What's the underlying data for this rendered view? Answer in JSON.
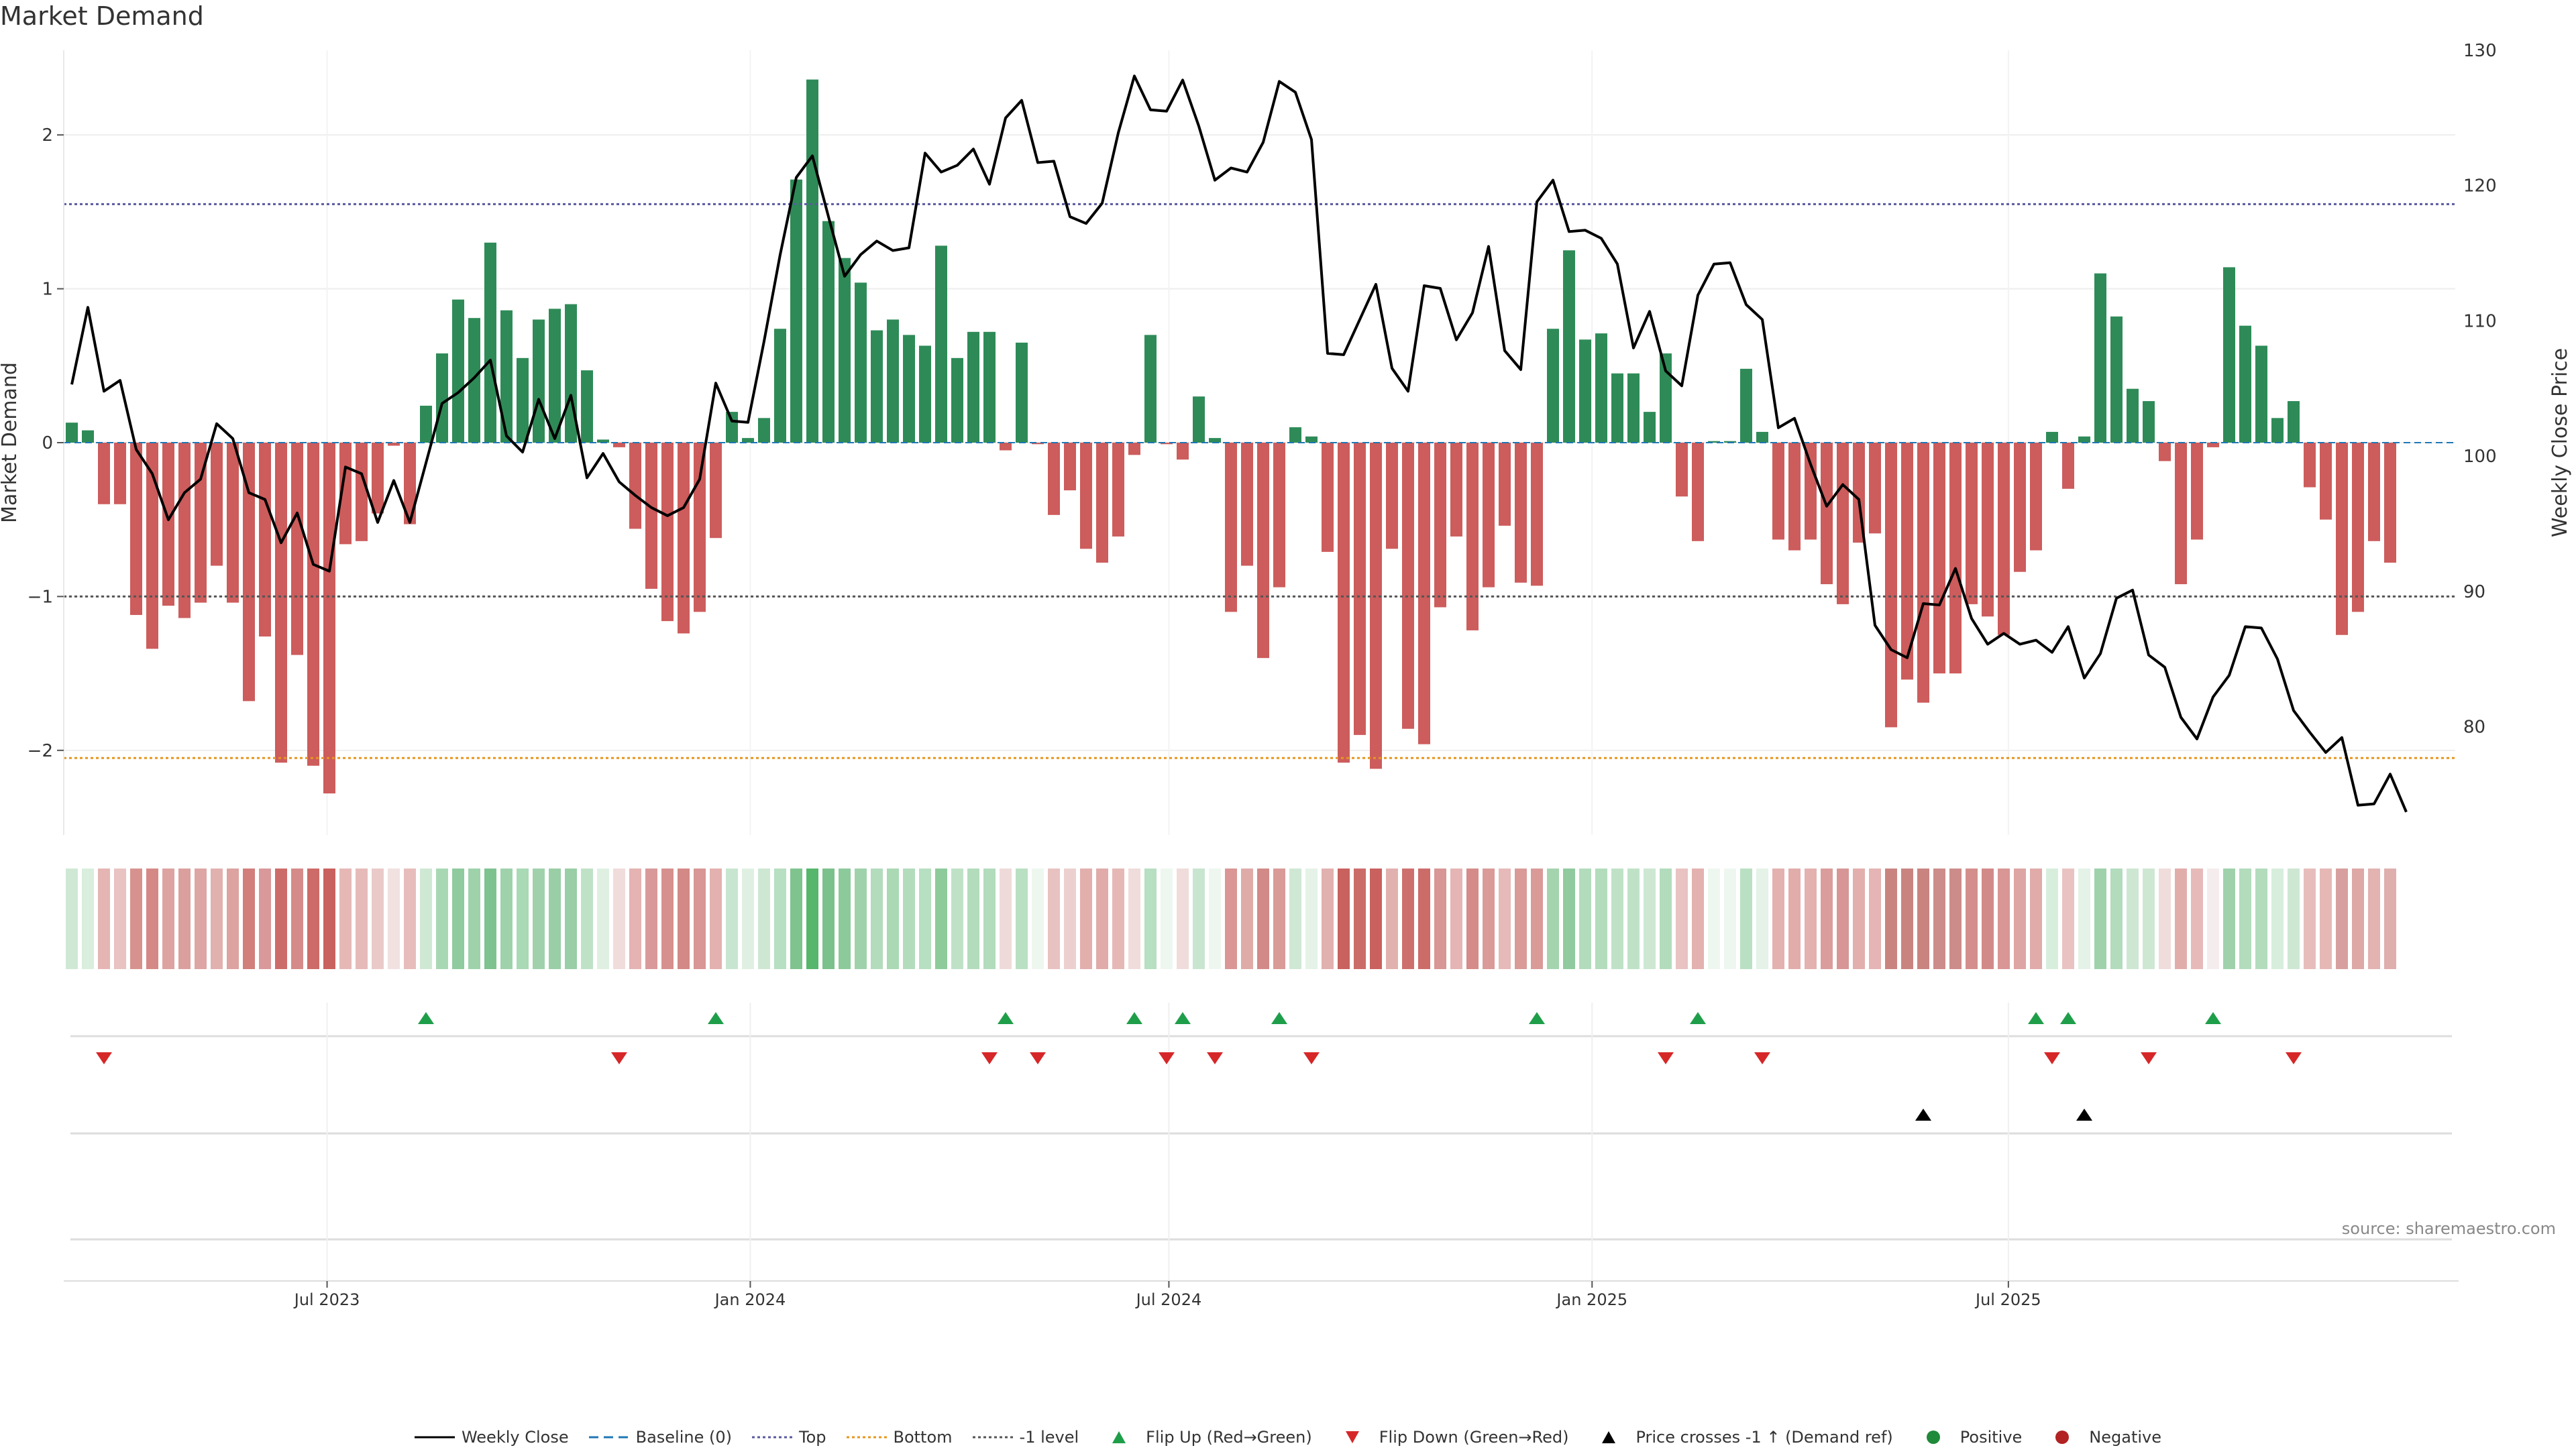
{
  "title": "Market Demand",
  "source_text": "source: sharemaestro.com",
  "colors": {
    "bar_positive": "#2e8b57",
    "bar_negative": "#cd5c5c",
    "price_line": "#000000",
    "top_line": "#5a5aa0",
    "bottom_line": "#e6961e",
    "minus1_line": "#555555",
    "flip_up": "#1f9e4a",
    "flip_down": "#d62728",
    "price_cross": "#000000",
    "positive_dot": "#1f8a3a",
    "negative_dot": "#b22222",
    "grid": "#eeeeee"
  },
  "chart_data": {
    "type": "bar",
    "title": "Market Demand",
    "ylabel": "Market Demand",
    "y2label": "Weekly Close Price",
    "ylim": [
      -2.55,
      2.55
    ],
    "y2lim": [
      72,
      130
    ],
    "yticks": [
      2,
      1,
      0,
      -1,
      -2
    ],
    "yticklabels": [
      "2",
      "1",
      "0",
      "−1",
      "−2"
    ],
    "y2ticks": [
      130,
      120,
      110,
      100,
      90,
      80
    ],
    "y2ticklabels": [
      "130",
      "120",
      "110",
      "100",
      "90",
      "80"
    ],
    "x_start": "2023-03-12",
    "x_end": "2025-10-26",
    "xticks": [
      {
        "date": "2023-07-01",
        "label": "Jul 2023"
      },
      {
        "date": "2024-01-01",
        "label": "Jan 2024"
      },
      {
        "date": "2024-07-01",
        "label": "Jul 2024"
      },
      {
        "date": "2025-01-01",
        "label": "Jan 2025"
      },
      {
        "date": "2025-07-01",
        "label": "Jul 2025"
      }
    ],
    "levels": {
      "top": 1.55,
      "bottom": -2.05,
      "minus1": -1
    },
    "demand": [
      0.13,
      0.08,
      -0.4,
      -0.4,
      -1.12,
      -1.34,
      -1.06,
      -1.14,
      -1.04,
      -0.8,
      -1.04,
      -1.68,
      -1.26,
      -2.08,
      -1.38,
      -2.1,
      -2.28,
      -0.66,
      -0.64,
      -0.46,
      -0.02,
      -0.53,
      0.24,
      0.58,
      0.93,
      0.81,
      1.3,
      0.86,
      0.55,
      0.8,
      0.87,
      0.9,
      0.47,
      0.02,
      -0.03,
      -0.56,
      -0.95,
      -1.16,
      -1.24,
      -1.1,
      -0.62,
      0.2,
      0.03,
      0.16,
      0.74,
      1.71,
      2.36,
      1.44,
      1.2,
      1.04,
      0.73,
      0.8,
      0.7,
      0.63,
      1.28,
      0.55,
      0.72,
      0.72,
      -0.05,
      0.65,
      -0.01,
      -0.47,
      -0.31,
      -0.69,
      -0.78,
      -0.61,
      -0.08,
      0.7,
      -0.01,
      -0.11,
      0.3,
      0.03,
      -1.1,
      -0.8,
      -1.4,
      -0.94,
      0.1,
      0.04,
      -0.71,
      -2.08,
      -1.9,
      -2.12,
      -0.69,
      -1.86,
      -1.96,
      -1.07,
      -0.61,
      -1.22,
      -0.94,
      -0.54,
      -0.91,
      -0.93,
      0.74,
      1.25,
      0.67,
      0.71,
      0.45,
      0.45,
      0.2,
      0.58,
      -0.35,
      -0.64,
      0.01,
      0.01,
      0.48,
      0.07,
      -0.63,
      -0.7,
      -0.63,
      -0.92,
      -1.05,
      -0.65,
      -0.59,
      -1.85,
      -1.54,
      -1.69,
      -1.5,
      -1.5,
      -1.05,
      -1.13,
      -1.25,
      -0.84,
      -0.7,
      0.07,
      -0.3,
      0.04,
      1.1,
      0.82,
      0.35,
      0.27,
      -0.12,
      -0.92,
      -0.63,
      -0.03,
      1.14,
      0.76,
      0.63,
      0.16,
      0.27,
      -0.29,
      -0.5,
      -1.25,
      -1.1,
      -0.64,
      -0.78
    ],
    "price": [
      105.3,
      111,
      104.8,
      105.6,
      100.5,
      98.7,
      95.3,
      97.3,
      98.3,
      102.4,
      101.3,
      97.3,
      96.8,
      93.6,
      95.8,
      92,
      91.5,
      99.2,
      98.7,
      95.1,
      98.2,
      95.1,
      99.5,
      103.9,
      104.7,
      105.8,
      107.1,
      101.5,
      100.3,
      104.2,
      101.3,
      104.5,
      98.4,
      100.2,
      98.1,
      97.1,
      96.2,
      95.6,
      96.2,
      98.3,
      105.4,
      102.6,
      102.5,
      108.5,
      114.9,
      120.6,
      122.2,
      117.7,
      113.3,
      114.9,
      115.9,
      115.2,
      115.4,
      122.4,
      121,
      121.5,
      122.7,
      120.1,
      125,
      126.3,
      121.7,
      121.8,
      117.7,
      117.2,
      118.7,
      123.9,
      128.1,
      125.6,
      125.5,
      127.8,
      124.4,
      120.4,
      121.3,
      121,
      123.2,
      127.7,
      126.9,
      123.4,
      107.6,
      107.5,
      110.1,
      112.7,
      106.5,
      104.8,
      112.6,
      112.4,
      108.6,
      110.6,
      115.5,
      107.8,
      106.4,
      118.8,
      120.4,
      116.6,
      116.7,
      116.1,
      114.2,
      108,
      110.7,
      106.3,
      105.2,
      111.9,
      114.2,
      114.3,
      111.2,
      110.1,
      102.1,
      102.8,
      99.4,
      96.3,
      97.9,
      96.8,
      87.5,
      85.7,
      85.1,
      89.1,
      89,
      91.7,
      88,
      86.1,
      86.9,
      86.1,
      86.4,
      85.5,
      87.4,
      83.6,
      85.4,
      89.5,
      90.1,
      85.3,
      84.4,
      80.7,
      79.1,
      82.2,
      83.8,
      87.4,
      87.3,
      85,
      81.2,
      79.6,
      78.1,
      79.2,
      74.2,
      74.3,
      76.5,
      73.7
    ],
    "flip_up_idx": [
      22,
      40,
      58,
      66,
      69,
      75,
      91,
      101,
      122,
      124,
      133
    ],
    "flip_down_idx": [
      2,
      34,
      57,
      60,
      68,
      71,
      77,
      99,
      105,
      123,
      129,
      138
    ],
    "price_cross_idx": [
      115,
      125
    ],
    "heat_colors": [
      "#cfe8d4",
      "#d9eedd",
      "#e5b5b4",
      "#e8c3c2",
      "#d7928f",
      "#d58986",
      "#dca3a1",
      "#dba09e",
      "#dda5a3",
      "#e1b1af",
      "#dca3a1",
      "#d27e7b",
      "#d9989a",
      "#cc6c69",
      "#d58b89",
      "#cc6b68",
      "#c9615e",
      "#e5b8b6",
      "#e6bab8",
      "#eacac9",
      "#f1e1e0",
      "#e7bdbc",
      "#cfe8d4",
      "#a8d8b3",
      "#8fcb9e",
      "#9fd2ab",
      "#7ec290",
      "#9fd2ab",
      "#a9d9b5",
      "#9fd2ab",
      "#99cea6",
      "#99cea6",
      "#bfe2c7",
      "#dff0e2",
      "#f0dcdb",
      "#e4b3b2",
      "#d9999a",
      "#d6908e",
      "#d38985",
      "#d89694",
      "#e3b1af",
      "#c8e5cf",
      "#dff0e2",
      "#cde7d3",
      "#b7dfc1",
      "#7fc38f",
      "#56b66c",
      "#7bc18b",
      "#8dca9b",
      "#9fd2ab",
      "#b3dcbd",
      "#aad9b4",
      "#b3dcbd",
      "#b7dfc1",
      "#8dcb9b",
      "#bfe2c7",
      "#b3dcbd",
      "#b3dcbd",
      "#efdada",
      "#b9e0c3",
      "#eef7ef",
      "#e8c2c1",
      "#ecd0cf",
      "#e2afad",
      "#e0aba9",
      "#e5b8b6",
      "#f0dcdb",
      "#b7dfc1",
      "#eef7ef",
      "#f0dcdb",
      "#c8e5cf",
      "#eef7ef",
      "#d99695",
      "#deaba9",
      "#d28a88",
      "#d99a98",
      "#cfe8d4",
      "#e4f2e7",
      "#e1b1af",
      "#c9615e",
      "#cc6c69",
      "#c9615e",
      "#e1b1af",
      "#cd706d",
      "#cc6c69",
      "#d89694",
      "#e4b5b4",
      "#d58b89",
      "#d99a98",
      "#e5bab8",
      "#d99a98",
      "#d99a98",
      "#a3d4ae",
      "#8fcb9e",
      "#b3dcbd",
      "#b3dcbd",
      "#bfe2c7",
      "#bfe2c7",
      "#cde7d3",
      "#b3dcbd",
      "#e8c3c2",
      "#e3b1af",
      "#eef7ef",
      "#eef7ef",
      "#b9e0c3",
      "#e4f2e7",
      "#e3b1af",
      "#e1adab",
      "#e3b1af",
      "#da9d9b",
      "#d79695",
      "#e2afad",
      "#e4b5b4",
      "#c98480",
      "#c98480",
      "#c98480",
      "#cc8c89",
      "#cc8c89",
      "#d48f8c",
      "#d28a88",
      "#d89694",
      "#dda5a3",
      "#e0aba9",
      "#d7eedd",
      "#e8c3c2",
      "#e4f2e7",
      "#9fd2ab",
      "#b3dcbd",
      "#cde7d3",
      "#cde7d3",
      "#f0dcdb",
      "#e1adab",
      "#e6bab8",
      "#f5eded",
      "#9fd2ab",
      "#b3dcbd",
      "#b3dcbd",
      "#d7eedd",
      "#cde7d3",
      "#e7bdbc",
      "#e5b8b6",
      "#d7a09e",
      "#dda8a6",
      "#e2b3b1",
      "#dfafad"
    ]
  },
  "legend": [
    {
      "key": "weekly_close",
      "label": "Weekly Close"
    },
    {
      "key": "baseline",
      "label": "Baseline (0)"
    },
    {
      "key": "top",
      "label": "Top"
    },
    {
      "key": "bottom",
      "label": "Bottom"
    },
    {
      "key": "minus1",
      "label": "-1 level"
    },
    {
      "key": "flip_up",
      "label": "Flip Up (Red→Green)"
    },
    {
      "key": "flip_down",
      "label": "Flip Down (Green→Red)"
    },
    {
      "key": "price_cross",
      "label": "Price crosses -1 ↑ (Demand ref)"
    },
    {
      "key": "positive",
      "label": "Positive"
    },
    {
      "key": "negative",
      "label": "Negative"
    }
  ]
}
